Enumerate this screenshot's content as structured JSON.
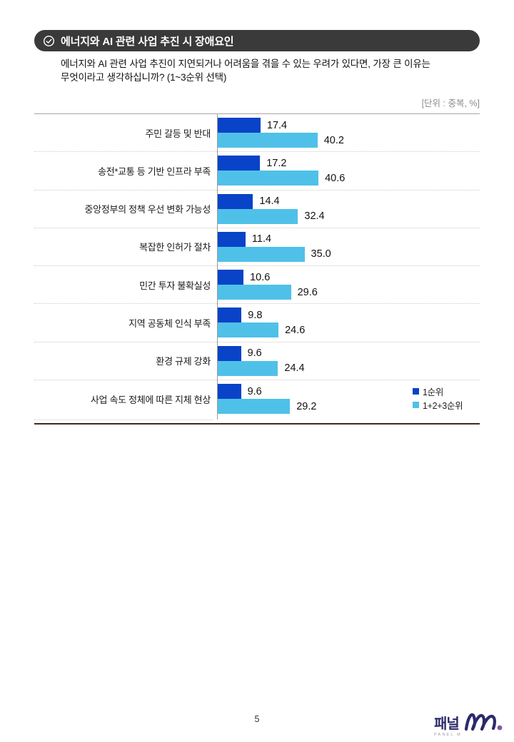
{
  "header": {
    "badge_title": "에너지와 AI 관련 사업 추진 시 장애요인",
    "badge_icon": "check-circle-icon"
  },
  "question": {
    "line1": "에너지와 AI 관련 사업 추진이 지연되거나 어려움을 겪을 수 있는 우려가 있다면, 가장 큰 이유는",
    "line2": "무엇이라고 생각하십니까? (1~3순위 선택)"
  },
  "unit_label": "[단위 : 중복, %]",
  "chart_data": {
    "type": "bar",
    "orientation": "horizontal",
    "title": "에너지와 AI 관련 사업 추진 시 장애요인",
    "categories": [
      "주민 갈등 및 반대",
      "송전*교통 등 기반 인프라 부족",
      "중앙정부의 정책 우선 변화 가능성",
      "복잡한 인허가 절차",
      "민간 투자 불확실성",
      "지역 공동체 인식 부족",
      "환경 규제 강화",
      "사업 속도 정체에 따른 지체 현상"
    ],
    "series": [
      {
        "name": "1순위",
        "color": "#0843c8",
        "values": [
          17.4,
          17.2,
          14.4,
          11.4,
          10.6,
          9.8,
          9.6,
          9.6
        ],
        "labels": [
          "17.4",
          "17.2",
          "14.4",
          "11.4",
          "10.6",
          "9.8",
          "9.6",
          "9.6"
        ]
      },
      {
        "name": "1+2+3순위",
        "color": "#4fc1e9",
        "values": [
          40.2,
          40.6,
          32.4,
          35.0,
          29.6,
          24.6,
          24.4,
          29.2
        ],
        "labels": [
          "40.2",
          "40.6",
          "32.4",
          "35.0",
          "29.6",
          "24.6",
          "24.4",
          "29.2"
        ]
      }
    ],
    "xlim": [
      0,
      45
    ],
    "grid": false,
    "value_labels": true,
    "legend_position": "bottom-right"
  },
  "footer": {
    "page_number": "5",
    "logo_text": "패널",
    "logo_subtext": "PANEL M"
  },
  "colors": {
    "badge_bg": "#3a3a3a",
    "badge_text": "#ffffff",
    "series1": "#0843c8",
    "series2": "#4fc1e9",
    "axis_line": "#9b9b9b",
    "top_rule": "#a6a6a6",
    "bottom_rule": "#3a2d1b",
    "row_divider": "#cbcbcb",
    "unit_text": "#8c8c8c",
    "logo_navy": "#2b2a6b",
    "logo_purple": "#7a5ba6"
  }
}
